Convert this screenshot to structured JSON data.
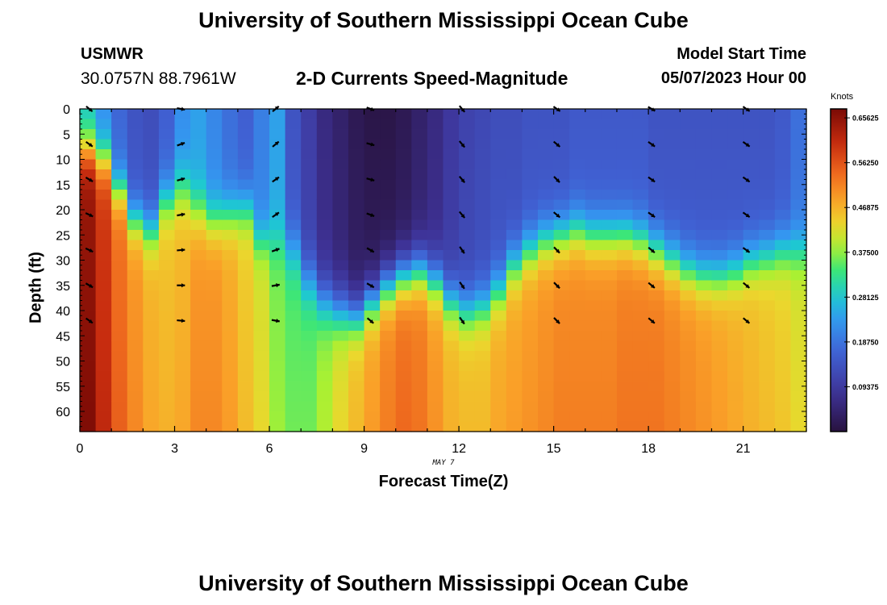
{
  "page": {
    "title": "University of Southern Mississippi Ocean Cube",
    "repeat_title": "University of Southern Mississippi Ocean Cube",
    "station": "USMWR",
    "coordinates": "30.0757N  88.7961W",
    "subtitle": "2-D Currents Speed-Magnitude",
    "model_start_label": "Model Start Time",
    "model_start_value": "05/07/2023 Hour 00",
    "date_annotation": "MAY 7"
  },
  "chart_data": {
    "type": "heatmap",
    "title": "2-D Currents Speed-Magnitude",
    "xlabel": "Forecast Time(Z)",
    "ylabel": "Depth (ft)",
    "xlim": [
      0,
      23
    ],
    "ylim": [
      0,
      64
    ],
    "y_inverted": true,
    "x_ticks": [
      0,
      3,
      6,
      9,
      12,
      15,
      18,
      21
    ],
    "y_ticks": [
      0,
      5,
      10,
      15,
      20,
      25,
      30,
      35,
      40,
      45,
      50,
      55,
      60
    ],
    "colorbar": {
      "unit": "Knots",
      "min": 0.0,
      "max": 0.675,
      "tick_labels": [
        "0.65625",
        "0.56250",
        "0.46875",
        "0.37500",
        "0.28125",
        "0.18750",
        "0.09375"
      ],
      "tick_values": [
        0.65625,
        0.5625,
        0.46875,
        0.375,
        0.28125,
        0.1875,
        0.09375
      ]
    },
    "hours": [
      0.25,
      0.75,
      1.25,
      1.75,
      2.25,
      2.75,
      3.25,
      3.75,
      4.25,
      4.75,
      5.25,
      5.75,
      6.25,
      6.75,
      7.25,
      7.75,
      8.25,
      8.75,
      9.25,
      9.75,
      10.25,
      10.75,
      11.25,
      11.75,
      12.25,
      12.75,
      13.25,
      13.75,
      14.25,
      14.75,
      15.25,
      15.75,
      16.25,
      16.75,
      17.25,
      17.75,
      18.25,
      18.75,
      19.25,
      19.75,
      20.25,
      20.75,
      21.25,
      21.75,
      22.25,
      22.75
    ],
    "profile_params": {
      "note": "Estimated speed profile per half-hour column: surface speed (knots), deep speed (knots), transition mid-depth (ft), transition width (ft)",
      "surface_speed": [
        0.28,
        0.22,
        0.17,
        0.14,
        0.13,
        0.16,
        0.22,
        0.24,
        0.21,
        0.18,
        0.16,
        0.2,
        0.24,
        0.14,
        0.1,
        0.06,
        0.04,
        0.02,
        0.01,
        0.01,
        0.02,
        0.04,
        0.06,
        0.09,
        0.11,
        0.12,
        0.13,
        0.13,
        0.14,
        0.14,
        0.14,
        0.15,
        0.15,
        0.15,
        0.15,
        0.15,
        0.14,
        0.14,
        0.14,
        0.14,
        0.14,
        0.14,
        0.14,
        0.14,
        0.15,
        0.18
      ],
      "deep_speed": [
        0.64,
        0.58,
        0.52,
        0.48,
        0.45,
        0.44,
        0.45,
        0.48,
        0.48,
        0.46,
        0.43,
        0.4,
        0.35,
        0.33,
        0.33,
        0.36,
        0.4,
        0.43,
        0.46,
        0.49,
        0.51,
        0.5,
        0.47,
        0.44,
        0.43,
        0.43,
        0.45,
        0.46,
        0.47,
        0.48,
        0.49,
        0.49,
        0.49,
        0.49,
        0.5,
        0.5,
        0.5,
        0.49,
        0.48,
        0.47,
        0.46,
        0.45,
        0.44,
        0.43,
        0.42,
        0.4
      ],
      "mid_depth": [
        8,
        10,
        16,
        22,
        24,
        18,
        16,
        20,
        22,
        21,
        20,
        26,
        26,
        28,
        34,
        38,
        40,
        41,
        38,
        35,
        33,
        32,
        34,
        38,
        40,
        39,
        36,
        31,
        28,
        26,
        25,
        24,
        25,
        25,
        25,
        26,
        28,
        30,
        32,
        33,
        33,
        32,
        30,
        29,
        28,
        28
      ],
      "width": [
        10,
        10,
        10,
        10,
        11,
        11,
        12,
        12,
        11,
        11,
        11,
        10,
        12,
        12,
        12,
        12,
        12,
        11,
        11,
        11,
        11,
        11,
        11,
        11,
        11,
        11,
        11,
        11,
        11,
        11,
        11,
        11,
        11,
        11,
        11,
        11,
        11,
        11,
        11,
        11,
        11,
        11,
        11,
        11,
        11,
        11
      ]
    },
    "vectors": {
      "times": [
        0.3,
        3.2,
        6.2,
        9.2,
        12.1,
        15.1,
        18.1,
        21.1
      ],
      "depths": [
        0,
        7,
        14,
        21,
        28,
        35,
        42
      ],
      "note": "direction in degrees clockwise from east (screen coords, +y down)",
      "directions": [
        [
          40,
          35,
          30,
          25,
          25,
          30,
          35
        ],
        [
          10,
          -20,
          -15,
          -10,
          -5,
          0,
          5
        ],
        [
          -40,
          -40,
          -35,
          -35,
          -20,
          -10,
          10
        ],
        [
          20,
          15,
          15,
          20,
          30,
          30,
          40
        ],
        [
          50,
          50,
          50,
          50,
          55,
          55,
          55
        ],
        [
          35,
          40,
          45,
          40,
          45,
          45,
          45
        ],
        [
          30,
          35,
          35,
          35,
          40,
          40,
          40
        ],
        [
          35,
          35,
          35,
          35,
          35,
          40,
          40
        ]
      ]
    }
  }
}
